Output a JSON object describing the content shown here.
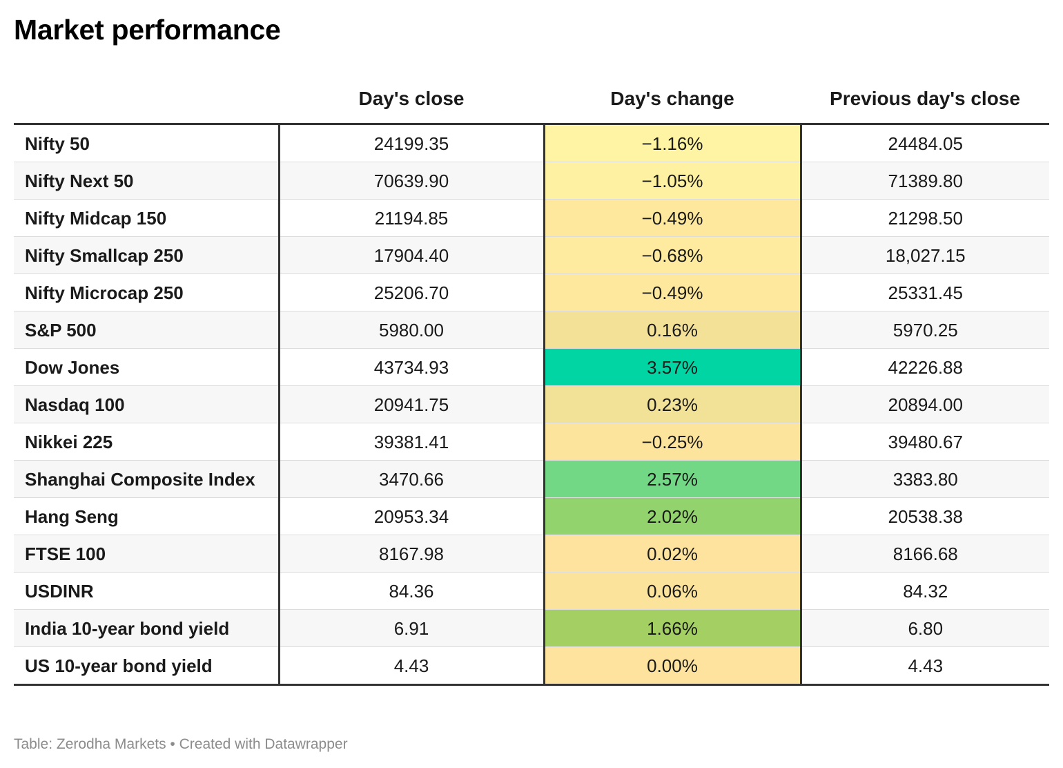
{
  "title": "Market performance",
  "footer": "Table: Zerodha Markets • Created with Datawrapper",
  "chart_data": {
    "type": "table",
    "title": "Market performance",
    "columns": [
      "",
      "Day's close",
      "Day's change",
      "Previous day's close"
    ],
    "rows": [
      {
        "name": "Nifty 50",
        "close": "24199.35",
        "change": "−1.16%",
        "prev": "24484.05",
        "color": "#fff4a3"
      },
      {
        "name": "Nifty Next 50",
        "close": "70639.90",
        "change": "−1.05%",
        "prev": "71389.80",
        "color": "#fff1a2"
      },
      {
        "name": "Nifty Midcap 150",
        "close": "21194.85",
        "change": "−0.49%",
        "prev": "21298.50",
        "color": "#fde89e"
      },
      {
        "name": "Nifty Smallcap 250",
        "close": "17904.40",
        "change": "−0.68%",
        "prev": "18,027.15",
        "color": "#feeb9f"
      },
      {
        "name": "Nifty Microcap 250",
        "close": "25206.70",
        "change": "−0.49%",
        "prev": "25331.45",
        "color": "#fde89e"
      },
      {
        "name": "S&P 500",
        "close": "5980.00",
        "change": "0.16%",
        "prev": "5970.25",
        "color": "#f3e198"
      },
      {
        "name": "Dow Jones",
        "close": "43734.93",
        "change": "3.57%",
        "prev": "42226.88",
        "color": "#02d5a4"
      },
      {
        "name": "Nasdaq 100",
        "close": "20941.75",
        "change": "0.23%",
        "prev": "20894.00",
        "color": "#f2e298"
      },
      {
        "name": "Nikkei 225",
        "close": "39381.41",
        "change": "−0.25%",
        "prev": "39480.67",
        "color": "#fde49d"
      },
      {
        "name": "Shanghai Composite Index",
        "close": "3470.66",
        "change": "2.57%",
        "prev": "3383.80",
        "color": "#72d886"
      },
      {
        "name": "Hang Seng",
        "close": "20953.34",
        "change": "2.02%",
        "prev": "20538.38",
        "color": "#93d36d"
      },
      {
        "name": "FTSE 100",
        "close": "8167.98",
        "change": "0.02%",
        "prev": "8166.68",
        "color": "#fde39d"
      },
      {
        "name": "USDINR",
        "close": "84.36",
        "change": "0.06%",
        "prev": "84.32",
        "color": "#fce39c"
      },
      {
        "name": "India 10-year bond yield",
        "close": "6.91",
        "change": "1.66%",
        "prev": "6.80",
        "color": "#a4cf63"
      },
      {
        "name": "US 10-year bond yield",
        "close": "4.43",
        "change": "0.00%",
        "prev": "4.43",
        "color": "#fde39d"
      }
    ]
  }
}
